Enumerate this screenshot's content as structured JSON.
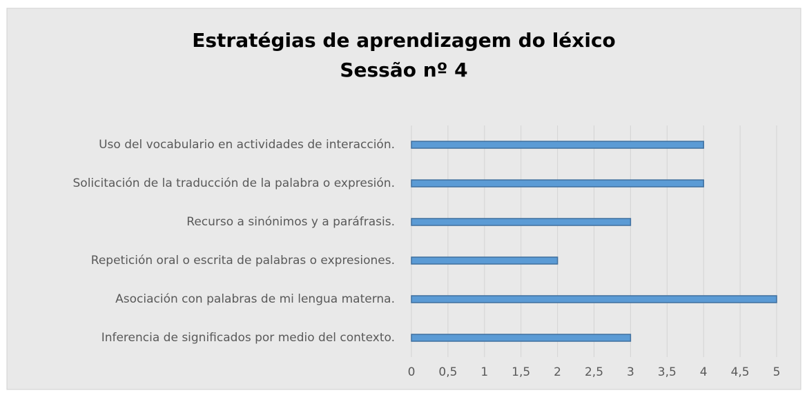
{
  "chart_data": {
    "type": "bar",
    "orientation": "horizontal",
    "title": [
      "Estratégias de aprendizagem do léxico",
      "Sessão nº 4"
    ],
    "categories": [
      "Uso del vocabulario en actividades de interacción.",
      "Solicitación de la traducción de la palabra o expresión.",
      "Recurso a sinónimos y a paráfrasis.",
      "Repetición oral o escrita de palabras o expresiones.",
      "Asociación con palabras de mi lengua materna.",
      "Inferencia de significados por medio del contexto."
    ],
    "values": [
      4,
      4,
      3,
      2,
      5,
      3
    ],
    "color": "#5b9bd5",
    "xlim": [
      0,
      5
    ],
    "xticks": [
      0,
      {
        "value": 0.5,
        "label": "0,5"
      },
      1,
      {
        "value": 1.5,
        "label": "1,5"
      },
      2,
      {
        "value": 2.5,
        "label": "2,5"
      },
      3,
      {
        "value": 3.5,
        "label": "3,5"
      },
      4,
      {
        "value": 4.5,
        "label": "4,5"
      },
      5
    ],
    "grid": true
  }
}
